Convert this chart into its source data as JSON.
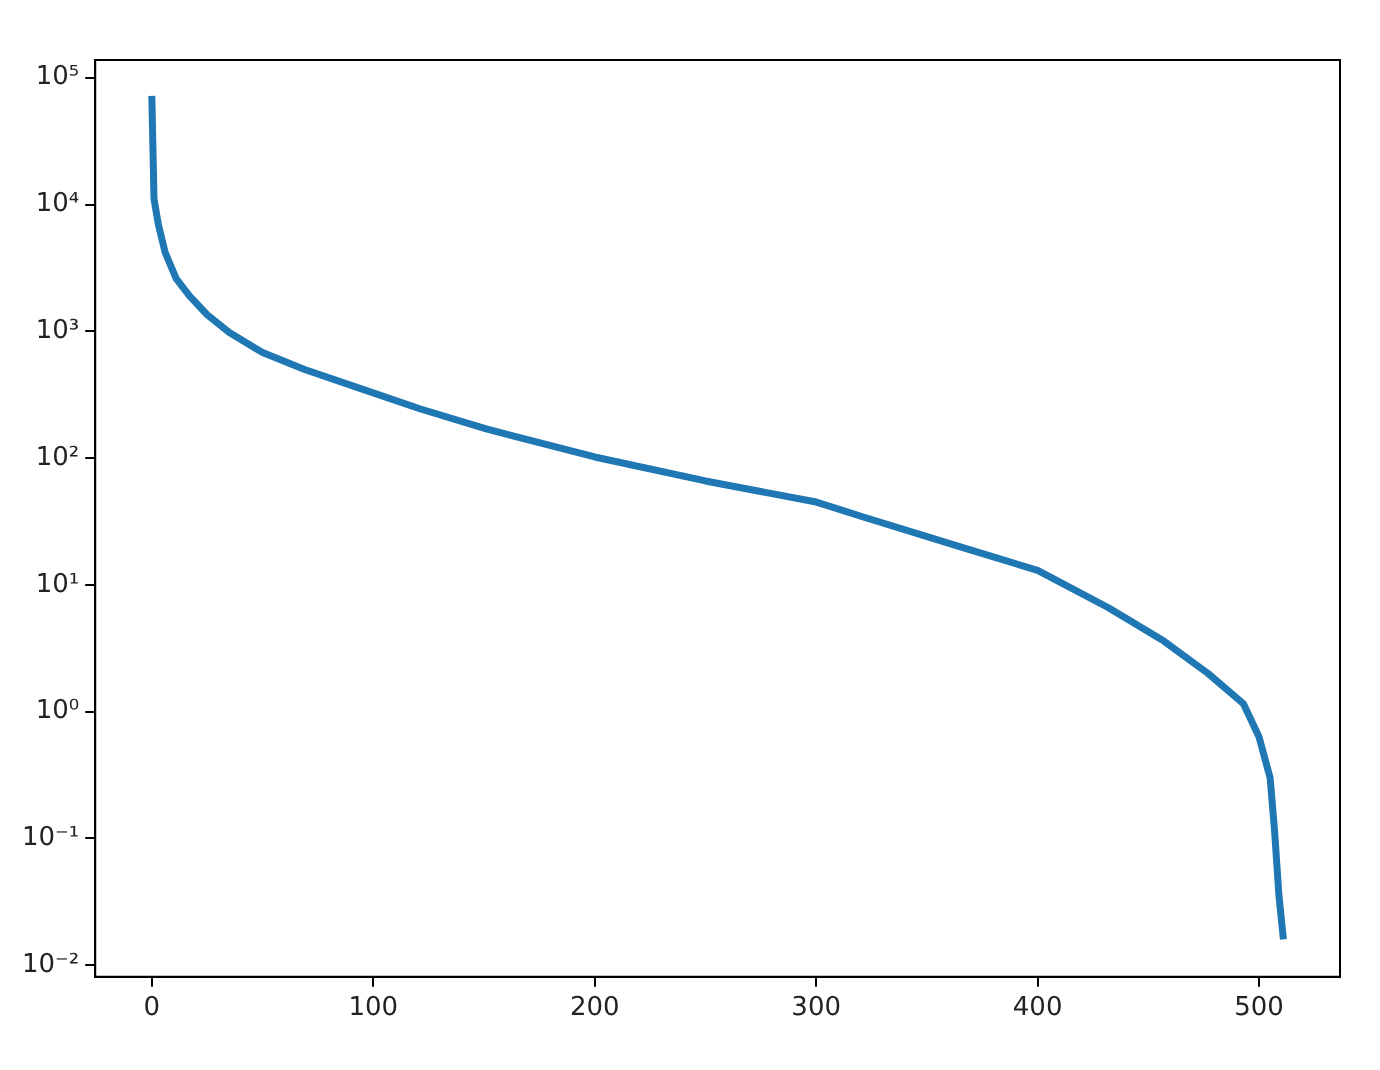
{
  "chart_data": {
    "type": "line",
    "x": [
      0,
      1,
      3,
      6,
      11,
      17,
      25,
      35,
      50,
      69,
      94,
      121,
      151,
      200,
      250,
      300,
      322,
      367,
      400,
      432,
      457,
      477,
      493,
      500,
      505,
      507,
      509,
      511
    ],
    "series": [
      {
        "color": "#1f77b4",
        "values": [
          72000,
          11000,
          6900,
          4200,
          2600,
          1900,
          1350,
          980,
          680,
          500,
          355,
          245,
          170,
          102,
          66,
          45,
          34,
          19.5,
          13,
          6.6,
          3.6,
          2.0,
          1.15,
          0.63,
          0.3,
          0.115,
          0.035,
          0.016
        ]
      }
    ],
    "log": "y",
    "xlim": [
      -25.55,
      536.55
    ],
    "xticks": [
      0,
      100,
      200,
      300,
      400,
      500
    ],
    "ylim": [
      0.0081,
      138000
    ],
    "yticks": [
      {
        "value": 0.01,
        "label": "10⁻²"
      },
      {
        "value": 0.1,
        "label": "10⁻¹"
      },
      {
        "value": 1,
        "label": "10⁰"
      },
      {
        "value": 10,
        "label": "10¹"
      },
      {
        "value": 100,
        "label": "10²"
      },
      {
        "value": 1000,
        "label": "10³"
      },
      {
        "value": 10000,
        "label": "10⁴"
      },
      {
        "value": 100000,
        "label": "10⁵"
      }
    ],
    "grid": false,
    "legend": false,
    "marker": "none",
    "line_style": "solid"
  }
}
